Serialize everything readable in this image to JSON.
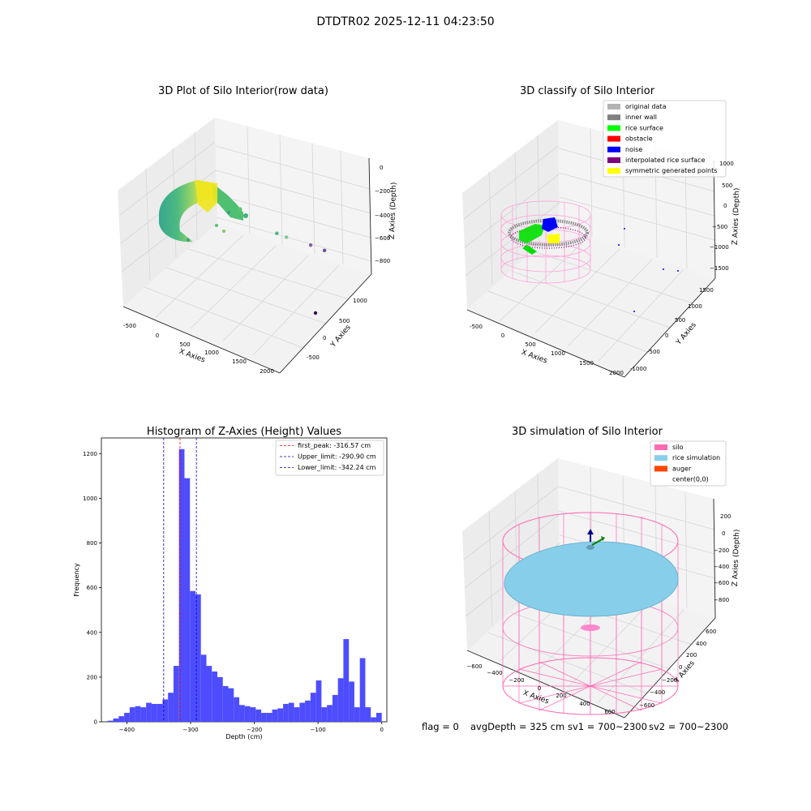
{
  "suptitle": "DTDTR02 2025-12-11 04:23:50",
  "footer": {
    "flag": "flag = 0",
    "avg_depth": "avgDepth = 325 cm",
    "sv1": "sv1 = 700~2300",
    "sv2": "sv2 = 700~2300"
  },
  "chart_data": [
    {
      "type": "scatter",
      "title": "3D Plot of Silo Interior(row data)",
      "xlabel": "X Axies",
      "ylabel": "Y Axies",
      "zlabel": "Z Axies (Depth)",
      "x_ticks": [
        "-500",
        "0",
        "500",
        "1000",
        "1500",
        "2000"
      ],
      "y_ticks": [
        "-500",
        "0",
        "500",
        "1000"
      ],
      "z_ticks": [
        "0",
        "−200",
        "−400",
        "−600",
        "−800"
      ],
      "xlim": [
        -600,
        2050
      ],
      "ylim": [
        -700,
        1150
      ],
      "zlim": [
        -950,
        50
      ],
      "outliers": [
        {
          "x": 1330,
          "y": 100,
          "z": -270,
          "color": "#43b97a"
        },
        {
          "x": 1450,
          "y": 150,
          "z": -300,
          "color": "#7ec98a"
        },
        {
          "x": 1650,
          "y": 400,
          "z": -440,
          "color": "#7f5fa3"
        },
        {
          "x": 1800,
          "y": 500,
          "z": -500,
          "color": "#6a4a9a"
        },
        {
          "x": 1900,
          "y": 200,
          "z": -880,
          "color": "#3c0b52"
        }
      ]
    },
    {
      "type": "scatter",
      "title": "3D classify of Silo Interior",
      "xlabel": "X Axies",
      "ylabel": "Y Axies",
      "zlabel": "Z Axies (Depth)",
      "x_ticks": [
        "-500",
        "0",
        "500",
        "1000",
        "1500",
        "2000"
      ],
      "y_ticks": [
        "-1000",
        "-500",
        "0",
        "500",
        "1000",
        "1500"
      ],
      "z_ticks": [
        "1000",
        "500",
        "0",
        "−500",
        "−1000",
        "−1500"
      ],
      "xlim": [
        -600,
        2050
      ],
      "ylim": [
        -1100,
        1700
      ],
      "zlim": [
        -1650,
        1150
      ],
      "legend": [
        {
          "label": "original data",
          "color": "#b3b3b3"
        },
        {
          "label": "inner wall",
          "color": "#808080"
        },
        {
          "label": "rice surface",
          "color": "#00ff00"
        },
        {
          "label": "obstacle",
          "color": "#ff0000"
        },
        {
          "label": "noise",
          "color": "#0000ff"
        },
        {
          "label": "interpolated rice surface",
          "color": "#800080"
        },
        {
          "label": "symmetric generated points",
          "color": "#ffff00"
        }
      ],
      "legend_loc": "upper right"
    },
    {
      "type": "bar",
      "title": "Histogram of Z-Axies (Height) Values",
      "xlabel": "Depth (cm)",
      "ylabel": "Frequency",
      "bin_start": -430,
      "bin_width": 8.6,
      "values": [
        5,
        15,
        25,
        40,
        65,
        70,
        65,
        85,
        80,
        80,
        100,
        130,
        250,
        1220,
        1090,
        585,
        570,
        300,
        250,
        225,
        200,
        160,
        150,
        110,
        75,
        70,
        65,
        55,
        40,
        40,
        55,
        60,
        80,
        85,
        65,
        85,
        95,
        130,
        185,
        65,
        75,
        120,
        195,
        370,
        180,
        65,
        285,
        65,
        20,
        40
      ],
      "x_ticks": [
        -400,
        -300,
        -200,
        -100,
        0
      ],
      "y_ticks": [
        0,
        200,
        400,
        600,
        800,
        1000,
        1200
      ],
      "xlim": [
        -440,
        8
      ],
      "ylim": [
        0,
        1270
      ],
      "bar_color": "#4d4dff",
      "vlines": [
        {
          "x": -316.57,
          "color": "#ff0000",
          "label": "first_peak: -316.57 cm"
        },
        {
          "x": -290.9,
          "color": "#0000cc",
          "label": "Upper_limit: -290.90 cm"
        },
        {
          "x": -342.24,
          "color": "#0000cc",
          "label": "Lower_limit: -342.24 cm"
        }
      ],
      "legend_loc": "upper right"
    },
    {
      "type": "scatter",
      "title": "3D simulation of Silo Interior",
      "xlabel": "X Axies",
      "ylabel": "Y Axies",
      "zlabel": "Z Axies (Depth)",
      "x_ticks": [
        "−600",
        "−400",
        "−200",
        "0",
        "200",
        "400",
        "600"
      ],
      "y_ticks": [
        "−600",
        "−400",
        "−200",
        "0",
        "200",
        "400",
        "600"
      ],
      "z_ticks": [
        "200",
        "0",
        "−200",
        "−400",
        "−600",
        "−800"
      ],
      "xlim": [
        -700,
        700
      ],
      "ylim": [
        -700,
        700
      ],
      "zlim": [
        -950,
        300
      ],
      "legend": [
        {
          "label": "silo",
          "color": "#ff69b4"
        },
        {
          "label": "rice simulation",
          "color": "#87ceeb"
        },
        {
          "label": "auger",
          "color": "#ff4500"
        },
        {
          "label": "center(0,0)",
          "color": ""
        }
      ],
      "legend_loc": "upper right"
    }
  ]
}
